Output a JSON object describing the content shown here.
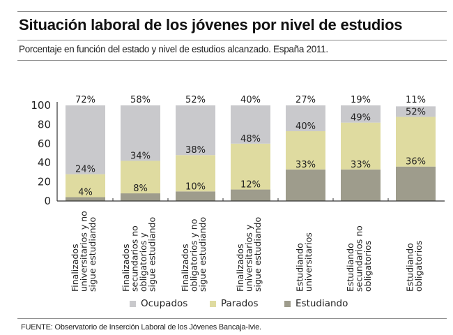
{
  "title": "Situación laboral de los jóvenes por nivel de estudios",
  "subtitle": "Porcentaje en función del estado y nivel de estudios alcanzado. España 2011.",
  "source": "FUENTE: Observatorio de Inserción Laboral de los Jóvenes Bancaja-Ivie.",
  "colors": {
    "Ocupados": "#c9c9cc",
    "Parados": "#dfdba0",
    "Estudiando": "#9e9c8c"
  },
  "legend": [
    {
      "label": "Ocupados",
      "color": "#c9c9cc"
    },
    {
      "label": "Parados",
      "color": "#dfdba0"
    },
    {
      "label": "Estudiando",
      "color": "#9e9c8c"
    }
  ],
  "chart_data": {
    "type": "bar",
    "stacked": true,
    "title": "Situación laboral de los jóvenes por nivel de estudios",
    "subtitle": "Porcentaje en función del estado y nivel de estudios alcanzado. España 2011.",
    "xlabel": "",
    "ylabel": "",
    "ylim": [
      0,
      100
    ],
    "yticks": [
      0,
      20,
      40,
      60,
      80,
      100
    ],
    "grid": false,
    "legend_position": "bottom",
    "categories": [
      [
        "Finalizados",
        "universitarios y no",
        "sigue estudiando"
      ],
      [
        "Finalizados",
        "secundarios no",
        "obligatorios y",
        "sigue estudiando"
      ],
      [
        "Finalizados",
        "obligatorios y no",
        "sigue estudiando"
      ],
      [
        "Finalizados",
        "universitarios y",
        "sigue estudiando"
      ],
      [
        "Estudiando",
        "universitarios"
      ],
      [
        "Estudiando",
        "secundarios no",
        "obligatorios"
      ],
      [
        "Estudiando",
        "obligatorios"
      ]
    ],
    "series": [
      {
        "name": "Estudiando",
        "values": [
          4,
          8,
          10,
          12,
          33,
          33,
          36
        ]
      },
      {
        "name": "Parados",
        "values": [
          24,
          34,
          38,
          48,
          40,
          49,
          52
        ]
      },
      {
        "name": "Ocupados",
        "values": [
          72,
          58,
          52,
          40,
          27,
          19,
          11
        ]
      }
    ],
    "data_labels": [
      {
        "Estudiando": "4%",
        "Parados": "24%",
        "Ocupados": "72%"
      },
      {
        "Estudiando": "8%",
        "Parados": "34%",
        "Ocupados": "58%"
      },
      {
        "Estudiando": "10%",
        "Parados": "38%",
        "Ocupados": "52%"
      },
      {
        "Estudiando": "12%",
        "Parados": "48%",
        "Ocupados": "40%"
      },
      {
        "Estudiando": "33%",
        "Parados": "40%",
        "Ocupados": "27%"
      },
      {
        "Estudiando": "33%",
        "Parados": "49%",
        "Ocupados": "19%"
      },
      {
        "Estudiando": "36%",
        "Parados": "52%",
        "Ocupados": "11%"
      }
    ]
  }
}
